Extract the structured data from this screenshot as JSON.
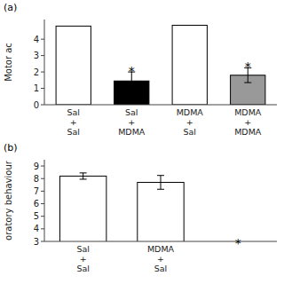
{
  "chart_data": [
    {
      "type": "bar",
      "title": "(a)",
      "categories": [
        "Sal\n+\nSal",
        "Sal\n+\nMDMA",
        "MDMA\n+\nSal",
        "MDMA\n+\nMDMA"
      ],
      "values": [
        4.8,
        1.45,
        4.85,
        1.8
      ],
      "errors": [
        0.0,
        0.55,
        0.0,
        0.45
      ],
      "colors": [
        "white",
        "black",
        "white",
        "#999999"
      ],
      "y_label": "Motor ac",
      "ylim": [
        0,
        5.2
      ],
      "yticks": [
        0,
        1,
        2,
        3,
        4
      ],
      "annotations": [
        {
          "text": "*",
          "category": "Sal\n+\nMDMA"
        },
        {
          "text": "*",
          "category": "MDMA\n+\nMDMA"
        }
      ]
    },
    {
      "type": "bar",
      "title": "(b)",
      "categories": [
        "Sal\n+\nSal",
        "MDMA\n+\nSal"
      ],
      "values": [
        8.2,
        7.7
      ],
      "errors": [
        0.25,
        0.55
      ],
      "colors": [
        "white",
        "white"
      ],
      "y_label": "oratory behaviour",
      "ylim": [
        3,
        9.5
      ],
      "yticks": [
        3,
        4,
        5,
        6,
        7,
        8,
        9
      ],
      "annotations": [
        {
          "text": "*",
          "y": 3.05
        }
      ]
    }
  ]
}
